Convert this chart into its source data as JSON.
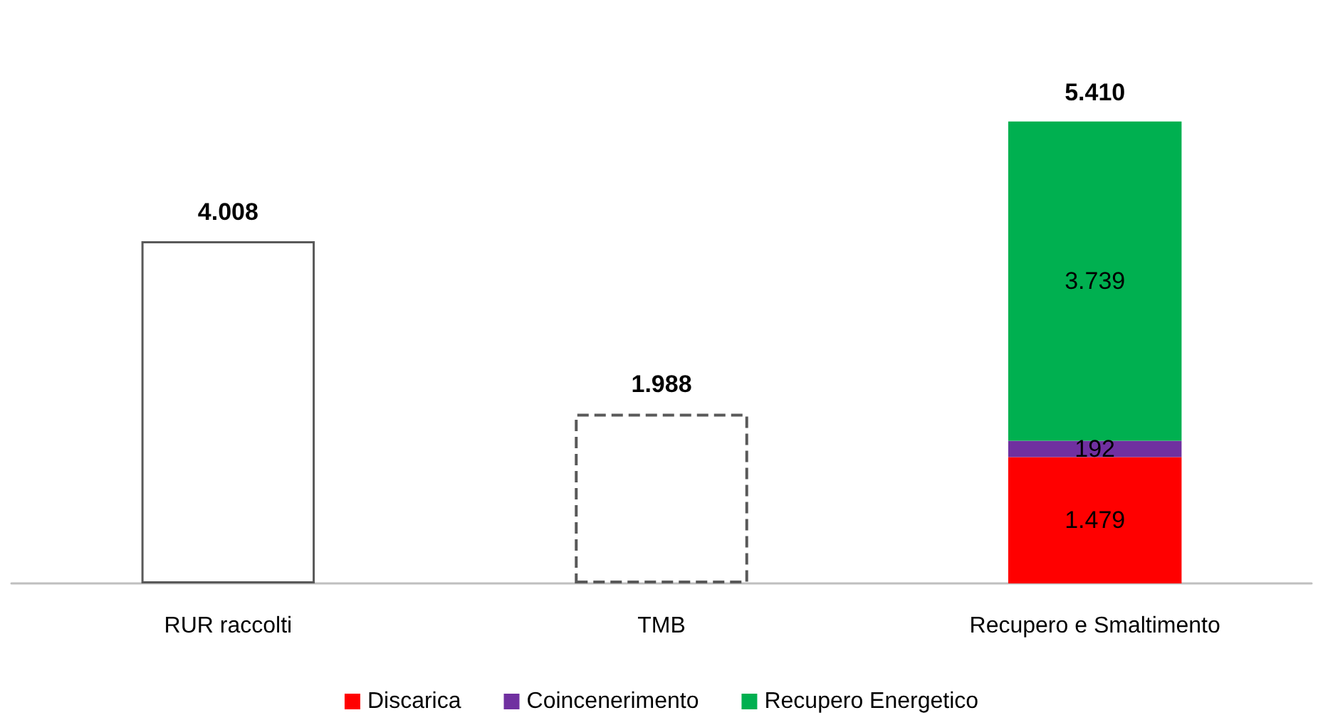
{
  "chart_data": {
    "type": "bar",
    "stacked": true,
    "categories": [
      "RUR raccolti",
      "TMB",
      "Recupero e Smaltimento"
    ],
    "series": [
      {
        "color": "#595959",
        "line_style": "solid",
        "values": [
          4008,
          null,
          null
        ],
        "value_labels": [
          "4.008",
          null,
          null
        ]
      },
      {
        "color": "#595959",
        "line_style": "dashed",
        "values": [
          null,
          1988,
          null
        ],
        "value_labels": [
          null,
          "1.988",
          null
        ]
      },
      {
        "name": "Discarica",
        "color": "#ff0000",
        "values": [
          null,
          null,
          1479
        ],
        "value_labels": [
          null,
          null,
          "1.479"
        ]
      },
      {
        "name": "Coincenerimento",
        "color": "#7030a0",
        "values": [
          null,
          null,
          192
        ],
        "value_labels": [
          null,
          null,
          "192"
        ]
      },
      {
        "name": "Recupero Energetico",
        "color": "#00b050",
        "values": [
          null,
          null,
          3739
        ],
        "value_labels": [
          null,
          null,
          "3.739"
        ]
      }
    ],
    "totals": [
      null,
      null,
      "5.410"
    ],
    "legend": "bottom"
  }
}
